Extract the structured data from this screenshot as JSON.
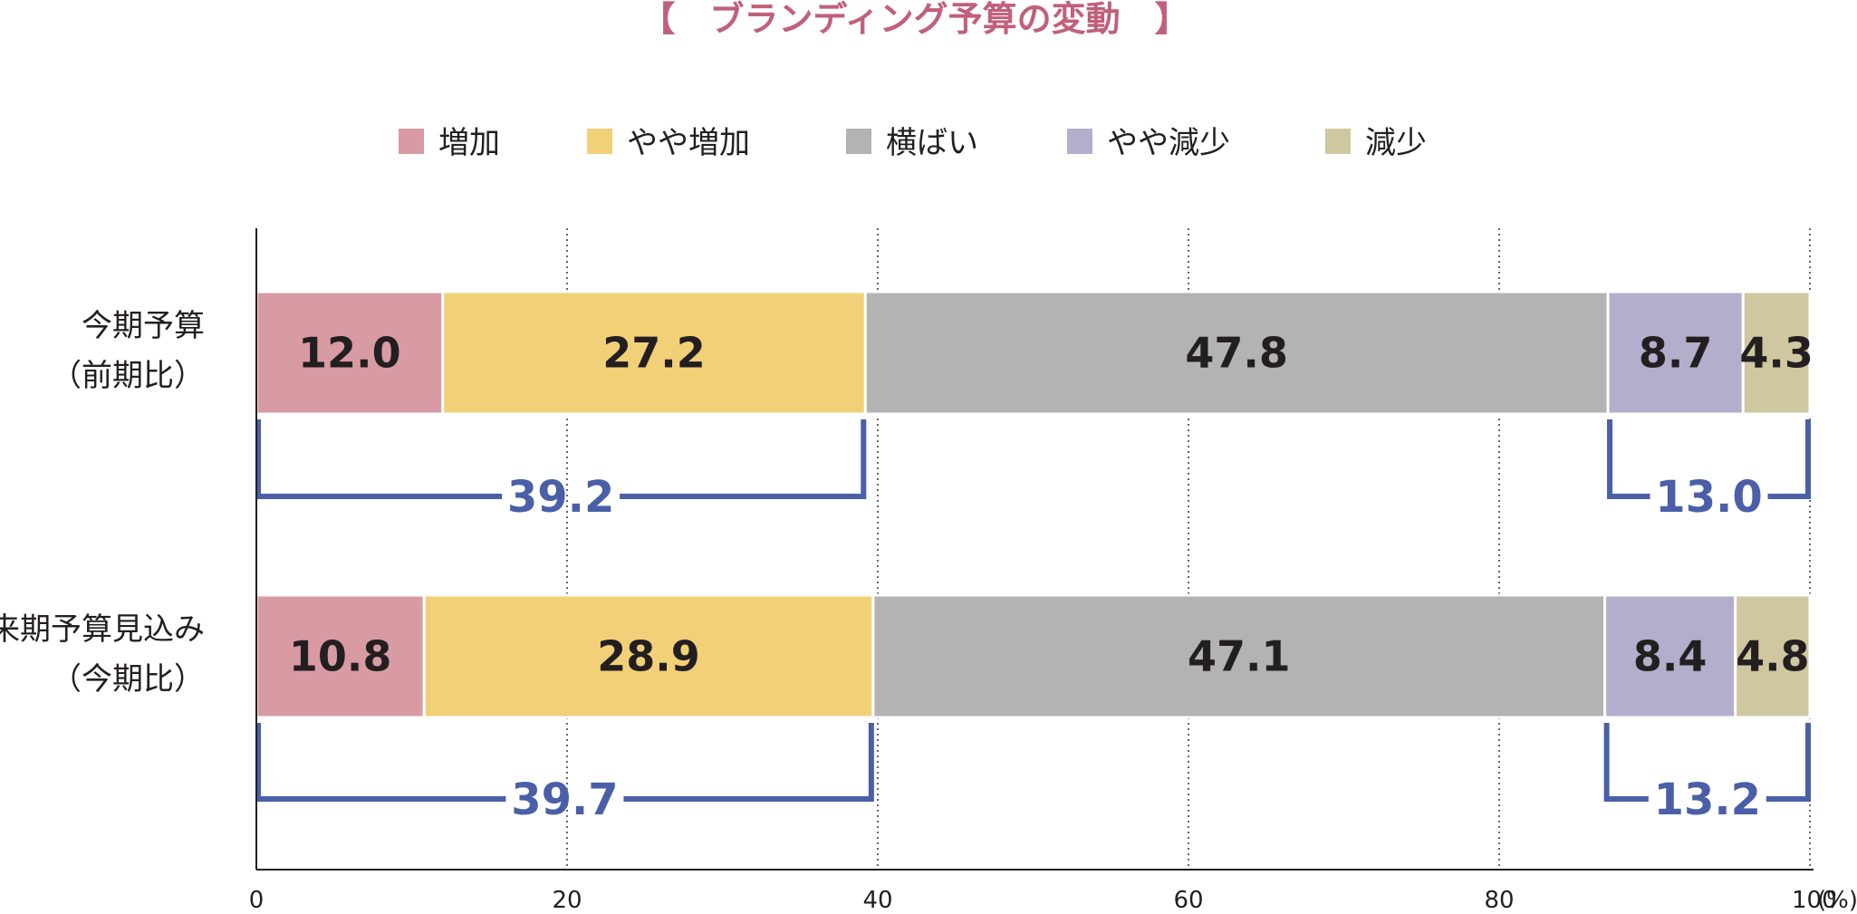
{
  "chart_data": {
    "type": "bar",
    "orientation": "horizontal",
    "stacked": true,
    "title": "【　ブランディング予算の変動　】",
    "title_color": "#c0607a",
    "unit": "(%)",
    "xlim": [
      0,
      100
    ],
    "xticks": [
      "0",
      "20",
      "40",
      "60",
      "80",
      "100"
    ],
    "grid": "vertical dotted",
    "legend_position": "top-center",
    "categories": [
      {
        "line1": "今期予算",
        "line2": "（前期比）"
      },
      {
        "line1": "来期予算見込み",
        "line2": "（今期比）"
      }
    ],
    "series": [
      {
        "name": "増加",
        "color": "#d89ba4",
        "values": [
          12.0,
          10.8
        ],
        "labels": [
          "12.0",
          "10.8"
        ]
      },
      {
        "name": "やや増加",
        "color": "#f2d077",
        "values": [
          27.2,
          28.9
        ],
        "labels": [
          "27.2",
          "28.9"
        ]
      },
      {
        "name": "横ばい",
        "color": "#b3b3b3",
        "values": [
          47.8,
          47.1
        ],
        "labels": [
          "47.8",
          "47.1"
        ]
      },
      {
        "name": "やや減少",
        "color": "#b3aecb",
        "values": [
          8.7,
          8.4
        ],
        "labels": [
          "8.7",
          "8.4"
        ]
      },
      {
        "name": "減少",
        "color": "#cfc7a0",
        "values": [
          4.3,
          4.8
        ],
        "labels": [
          "4.3",
          "4.8"
        ]
      }
    ],
    "annotations": [
      {
        "category": 0,
        "from_series": 0,
        "to_series": 1,
        "label": "39.2"
      },
      {
        "category": 0,
        "from_series": 3,
        "to_series": 4,
        "label": "13.0"
      },
      {
        "category": 1,
        "from_series": 0,
        "to_series": 1,
        "label": "39.7"
      },
      {
        "category": 1,
        "from_series": 3,
        "to_series": 4,
        "label": "13.2"
      }
    ],
    "annotation_color": "#4a5fa8"
  }
}
